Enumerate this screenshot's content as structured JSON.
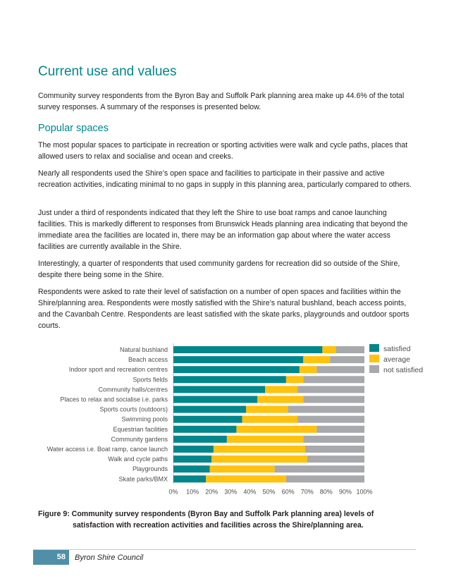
{
  "heading": "Current use and values",
  "intro": "Community survey respondents from the Byron Bay and Suffolk Park planning area make up 44.6% of the total survey responses. A summary of the responses is presented below.",
  "subheading": "Popular spaces",
  "paragraphs": [
    "The most popular spaces to participate in recreation or sporting activities were walk and cycle paths, places that allowed users to relax and socialise and ocean and creeks.",
    "Nearly all respondents used the Shire’s open space and facilities to participate in their passive and active recreation activities, indicating minimal to no gaps in supply in this planning area, particularly compared to others.",
    "Just under a third of respondents indicated that they left the Shire to use boat ramps and canoe launching facilities. This is markedly different to responses from Brunswick Heads planning area indicating that beyond the immediate area the facilities are located in, there may be an information gap about where the water access facilities are currently available in the Shire.",
    "Interestingly, a quarter of respondents that used community gardens for recreation did so outside of the Shire, despite there being some in the Shire.",
    "Respondents were asked to rate their level of satisfaction on a number of open spaces and facilities within the Shire/planning area. Respondents were mostly satisfied with the Shire’s natural bushland, beach access points, and the Cavanbah Centre. Respondents are least satisfied with the skate parks, playgrounds and outdoor sports courts."
  ],
  "chart_data": {
    "type": "bar",
    "orientation": "horizontal",
    "stacked": true,
    "categories": [
      "Natural bushland",
      "Beach access",
      "Indoor sport and recreation centres",
      "Sports fields",
      "Community halls/centres",
      "Places to relax and socialise i.e. parks",
      "Sports courts (outdoors)",
      "Swimming pools",
      "Equestrian facilities",
      "Community gardens",
      "Water access i.e. Boat ramp, canoe launch",
      "Walk and cycle paths",
      "Playgrounds",
      "Skate parks/BMX"
    ],
    "series": [
      {
        "name": "satisfied",
        "color": "#00868b",
        "values": [
          78,
          68,
          66,
          59,
          48,
          44,
          38,
          36,
          33,
          28,
          21,
          20,
          19,
          17
        ]
      },
      {
        "name": "average",
        "color": "#ffc20e",
        "values": [
          7,
          14,
          9,
          9,
          17,
          24,
          22,
          29,
          42,
          40,
          48,
          50,
          34,
          42
        ]
      },
      {
        "name": "not satisfied",
        "color": "#a7a9ac",
        "values": [
          15,
          18,
          25,
          32,
          35,
          32,
          40,
          35,
          25,
          32,
          31,
          30,
          47,
          41
        ]
      }
    ],
    "xticks": [
      "0%",
      "10%",
      "20%",
      "30%",
      "40%",
      "50%",
      "60%",
      "70%",
      "80%",
      "90%",
      "100%"
    ],
    "xlim": [
      0,
      100
    ],
    "legend": "top-right",
    "grid": false
  },
  "caption": {
    "line1": "Figure 9: Community survey respondents (Byron Bay and Suffolk Park planning area) levels of",
    "line2": "satisfaction with recreation activities and facilities across the Shire/planning area."
  },
  "footer": {
    "page_number": "58",
    "org": "Byron Shire Council"
  }
}
